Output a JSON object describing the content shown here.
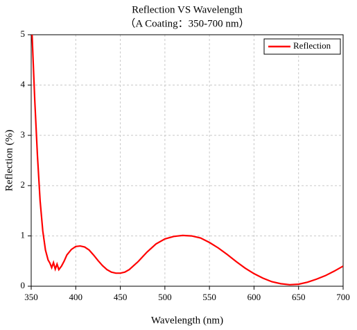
{
  "chart_data": {
    "type": "line",
    "title": "Reflection VS Wavelength",
    "subtitle": "（A Coating：350-700 nm）",
    "x_label": "Wavelength (nm)",
    "y_label": "Reflection (%)",
    "xlim": [
      350,
      700
    ],
    "xticks": [
      350,
      400,
      450,
      500,
      550,
      600,
      650,
      700
    ],
    "ylim": [
      0,
      5
    ],
    "yticks": [
      0,
      1,
      2,
      3,
      4,
      5
    ],
    "grid": true,
    "legend": "upper right",
    "x": [
      351,
      354,
      357,
      360,
      363,
      366,
      369,
      371,
      373,
      375,
      377,
      379,
      381,
      384,
      387,
      390,
      395,
      400,
      405,
      410,
      415,
      420,
      425,
      430,
      435,
      440,
      445,
      450,
      455,
      460,
      470,
      480,
      490,
      500,
      510,
      520,
      530,
      540,
      550,
      560,
      570,
      580,
      590,
      600,
      610,
      620,
      630,
      640,
      650,
      660,
      670,
      680,
      690,
      700
    ],
    "series": [
      {
        "name": "Reflection",
        "color": "#ff0000",
        "values": [
          5.0,
          3.7,
          2.6,
          1.7,
          1.1,
          0.72,
          0.52,
          0.46,
          0.37,
          0.47,
          0.34,
          0.44,
          0.33,
          0.4,
          0.5,
          0.62,
          0.73,
          0.79,
          0.8,
          0.78,
          0.72,
          0.62,
          0.51,
          0.41,
          0.33,
          0.28,
          0.26,
          0.26,
          0.28,
          0.33,
          0.49,
          0.68,
          0.84,
          0.94,
          0.99,
          1.01,
          1.0,
          0.96,
          0.87,
          0.76,
          0.63,
          0.49,
          0.36,
          0.25,
          0.16,
          0.09,
          0.05,
          0.03,
          0.04,
          0.08,
          0.14,
          0.21,
          0.3,
          0.4
        ]
      }
    ]
  }
}
